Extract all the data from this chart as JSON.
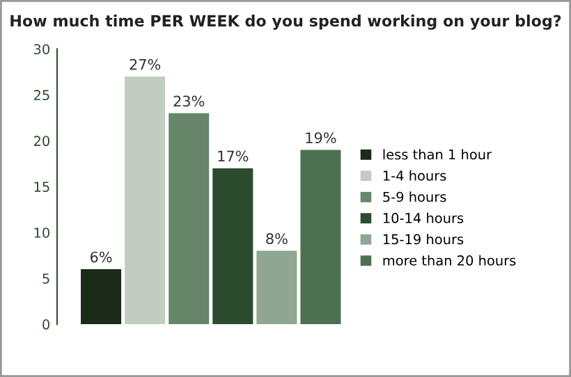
{
  "chart_data": {
    "type": "bar",
    "title": "How much time PER WEEK do you spend working on your blog?",
    "categories": [
      null,
      null,
      null,
      null,
      null,
      null
    ],
    "series": [
      {
        "name": "less than 1 hour",
        "color": "#1c2a1a",
        "values": [
          6,
          null,
          null,
          null,
          null,
          null
        ],
        "value_labels": [
          "6%",
          null,
          null,
          null,
          null,
          null
        ]
      },
      {
        "name": "1-4 hours",
        "color": "#c2cdc2",
        "values": [
          null,
          27,
          null,
          null,
          null,
          null
        ],
        "value_labels": [
          null,
          "27%",
          null,
          null,
          null,
          null
        ]
      },
      {
        "name": "5-9 hours",
        "color": "#658669",
        "values": [
          null,
          null,
          23,
          null,
          null,
          null
        ],
        "value_labels": [
          null,
          null,
          "23%",
          null,
          null,
          null
        ]
      },
      {
        "name": "10-14 hours",
        "color": "#2d4b2f",
        "values": [
          null,
          null,
          null,
          17,
          null,
          null
        ],
        "value_labels": [
          null,
          null,
          null,
          "17%",
          null,
          null
        ]
      },
      {
        "name": "15-19 hours",
        "color": "#8ea692",
        "values": [
          null,
          null,
          null,
          null,
          8,
          null
        ],
        "value_labels": [
          null,
          null,
          null,
          null,
          "8%",
          null
        ]
      },
      {
        "name": "more than 20 hours",
        "color": "#4e7052",
        "values": [
          null,
          null,
          null,
          null,
          null,
          19
        ],
        "value_labels": [
          null,
          null,
          null,
          null,
          null,
          "19%"
        ]
      }
    ],
    "ylim": [
      0,
      30
    ],
    "yticks": [
      0,
      5,
      10,
      15,
      20,
      25,
      30
    ],
    "stacked": true,
    "tick_labels": "y",
    "legend": "right",
    "grid": false
  }
}
